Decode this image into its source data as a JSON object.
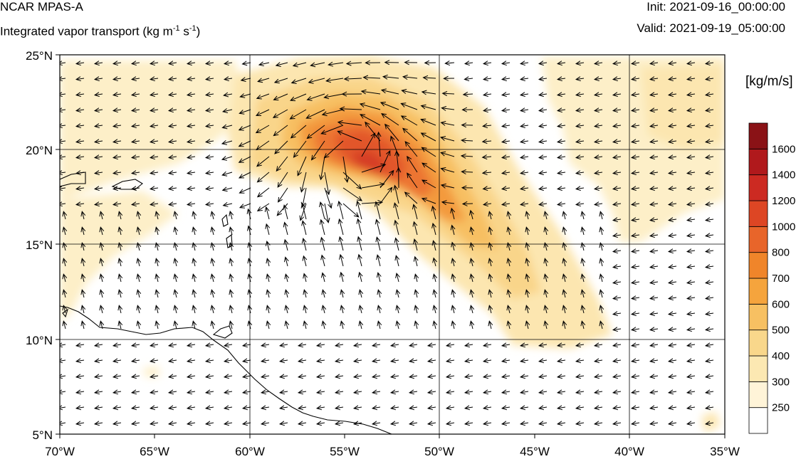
{
  "header": {
    "title": "NCAR MPAS-A",
    "subtitle_main": "Integrated vapor transport (kg m",
    "subtitle_sup1": "-1",
    "subtitle_mid": " s",
    "subtitle_sup2": "-1",
    "subtitle_end": ")",
    "init": "Init: 2021-09-16_00:00:00",
    "valid": "Valid: 2021-09-19_05:00:00"
  },
  "colorbar": {
    "units": "[kg/m/s]",
    "labels": [
      "250",
      "300",
      "400",
      "500",
      "600",
      "700",
      "800",
      "1000",
      "1200",
      "1400",
      "1600"
    ],
    "colors": [
      "#ffffff",
      "#fff4d8",
      "#fce8b2",
      "#f9d78b",
      "#f7c062",
      "#f5a43d",
      "#f0852a",
      "#e8652a",
      "#dd4624",
      "#cc2a22",
      "#b0191c",
      "#8a1216"
    ]
  },
  "map": {
    "lat_labels": [
      "25°N",
      "20°N",
      "15°N",
      "10°N",
      "5°N"
    ],
    "lon_labels": [
      "70°W",
      "65°W",
      "60°W",
      "55°W",
      "50°W",
      "45°W",
      "40°W",
      "35°W"
    ]
  }
}
